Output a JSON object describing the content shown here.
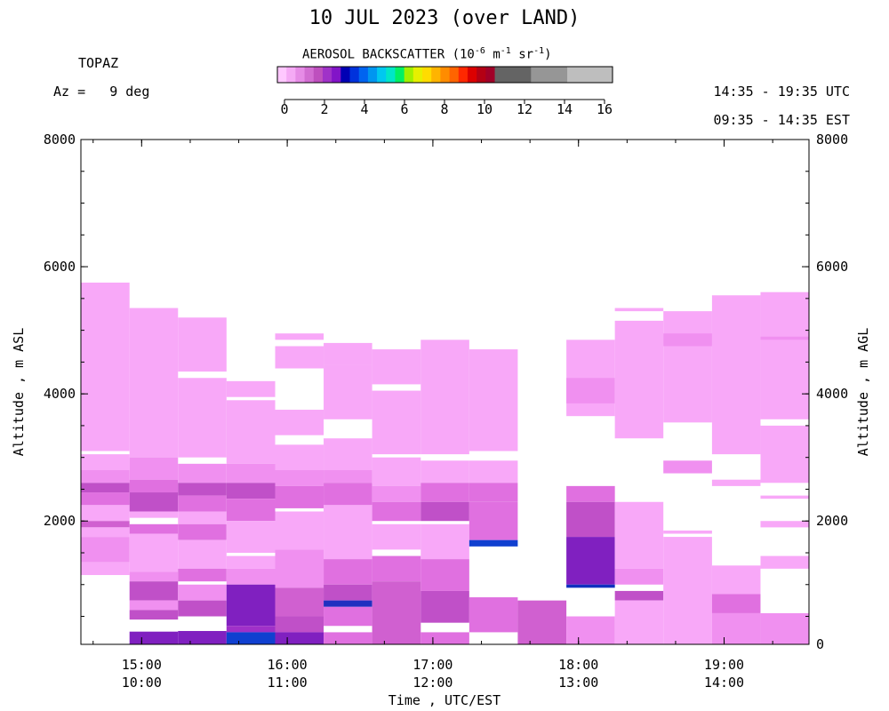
{
  "header": {
    "title": "10 JUL 2023 (over LAND)",
    "instrument": "TOPAZ",
    "azimuth_label": "Az =",
    "azimuth_value": "9 deg",
    "colorbar_title_prefix": "AEROSOL BACKSCATTER (10",
    "colorbar_title_exp1": "-6",
    "colorbar_title_mid": " m",
    "colorbar_title_exp2": "-1",
    "colorbar_title_mid2": " sr",
    "colorbar_title_exp3": "-1",
    "colorbar_title_suffix": ")",
    "utc_range": "14:35 - 19:35 UTC",
    "local_range": "09:35 - 14:35 EST"
  },
  "colorbar": {
    "ticks": [
      "0",
      "2",
      "4",
      "6",
      "8",
      "10",
      "12",
      "14",
      "16"
    ],
    "colors": [
      "#ffc8ff",
      "#f5aaf5",
      "#e68ce6",
      "#d26ed2",
      "#be50be",
      "#a032c8",
      "#8214c8",
      "#0000b4",
      "#0032dc",
      "#0064f0",
      "#0096f0",
      "#00c8f0",
      "#00e6c8",
      "#00f064",
      "#a0f000",
      "#e6f000",
      "#ffdc00",
      "#ffb400",
      "#ff8c00",
      "#ff6400",
      "#ff2800",
      "#dc0000",
      "#b40014",
      "#a00028",
      "#646464",
      "#646464",
      "#646464",
      "#646464",
      "#969696",
      "#969696",
      "#969696",
      "#969696",
      "#bebebe",
      "#bebebe",
      "#bebebe",
      "#bebebe",
      "#bebebe"
    ]
  },
  "chart_data": {
    "type": "heatmap",
    "title": "10 JUL 2023 (over LAND)",
    "xlabel": "Time , UTC/EST",
    "ylabel_left": "Altitude , m ASL",
    "ylabel_right": "Altitude , m AGL",
    "x_ticks_utc": [
      "15:00",
      "16:00",
      "17:00",
      "18:00",
      "19:00"
    ],
    "x_ticks_local": [
      "10:00",
      "11:00",
      "12:00",
      "13:00",
      "14:00"
    ],
    "x_tick_hours": [
      15,
      16,
      17,
      18,
      19
    ],
    "xlim_hours": [
      14.583,
      19.583
    ],
    "y_ticks_left": [
      "8000",
      "6000",
      "4000",
      "2000"
    ],
    "y_ticks_left_values": [
      8000,
      6000,
      4000,
      2000
    ],
    "y_ticks_right": [
      "8000",
      "6000",
      "4000",
      "2000",
      "0"
    ],
    "y_ticks_right_values": [
      8000,
      6000,
      4000,
      2000,
      60
    ],
    "ylim": [
      60,
      8000
    ],
    "colorbar_range": [
      0,
      16
    ],
    "profiles": [
      {
        "t0": 14.583,
        "t1": 14.917,
        "segments": [
          {
            "lo": 3100,
            "hi": 5750,
            "c": "#f8a8f8"
          },
          {
            "lo": 2800,
            "hi": 3050,
            "c": "#f8a8f8"
          },
          {
            "lo": 2600,
            "hi": 2800,
            "c": "#f090f0"
          },
          {
            "lo": 2450,
            "hi": 2600,
            "c": "#c050c8"
          },
          {
            "lo": 2250,
            "hi": 2450,
            "c": "#e070e0"
          },
          {
            "lo": 2000,
            "hi": 2250,
            "c": "#f8a8f8"
          },
          {
            "lo": 1900,
            "hi": 2000,
            "c": "#d060d0"
          },
          {
            "lo": 1750,
            "hi": 1900,
            "c": "#f8a8f8"
          },
          {
            "lo": 1350,
            "hi": 1750,
            "c": "#f090f0"
          },
          {
            "lo": 1150,
            "hi": 1350,
            "c": "#f8a8f8"
          }
        ]
      },
      {
        "t0": 14.917,
        "t1": 15.25,
        "segments": [
          {
            "lo": 3000,
            "hi": 5350,
            "c": "#f8a8f8"
          },
          {
            "lo": 2650,
            "hi": 3000,
            "c": "#f090f0"
          },
          {
            "lo": 2450,
            "hi": 2650,
            "c": "#e070e0"
          },
          {
            "lo": 2150,
            "hi": 2450,
            "c": "#c050c8"
          },
          {
            "lo": 2050,
            "hi": 2150,
            "c": "#f8a8f8"
          },
          {
            "lo": 1800,
            "hi": 1950,
            "c": "#e070e0"
          },
          {
            "lo": 1200,
            "hi": 1800,
            "c": "#f8a8f8"
          },
          {
            "lo": 1050,
            "hi": 1200,
            "c": "#f090f0"
          },
          {
            "lo": 750,
            "hi": 1050,
            "c": "#c050c8"
          },
          {
            "lo": 600,
            "hi": 750,
            "c": "#f090f0"
          },
          {
            "lo": 450,
            "hi": 600,
            "c": "#c050c8"
          },
          {
            "lo": 60,
            "hi": 260,
            "c": "#8020c0"
          }
        ]
      },
      {
        "t0": 15.25,
        "t1": 15.583,
        "segments": [
          {
            "lo": 4350,
            "hi": 5200,
            "c": "#f8a8f8"
          },
          {
            "lo": 3000,
            "hi": 4250,
            "c": "#f8a8f8"
          },
          {
            "lo": 2600,
            "hi": 2900,
            "c": "#f090f0"
          },
          {
            "lo": 2400,
            "hi": 2600,
            "c": "#c050c8"
          },
          {
            "lo": 2150,
            "hi": 2400,
            "c": "#e070e0"
          },
          {
            "lo": 1950,
            "hi": 2150,
            "c": "#f8a8f8"
          },
          {
            "lo": 1700,
            "hi": 1950,
            "c": "#e070e0"
          },
          {
            "lo": 1250,
            "hi": 1700,
            "c": "#f8a8f8"
          },
          {
            "lo": 1050,
            "hi": 1250,
            "c": "#e070e0"
          },
          {
            "lo": 750,
            "hi": 1000,
            "c": "#f090f0"
          },
          {
            "lo": 500,
            "hi": 750,
            "c": "#c050c8"
          },
          {
            "lo": 60,
            "hi": 270,
            "c": "#8020c0"
          }
        ]
      },
      {
        "t0": 15.583,
        "t1": 15.917,
        "segments": [
          {
            "lo": 3950,
            "hi": 4200,
            "c": "#f8a8f8"
          },
          {
            "lo": 2900,
            "hi": 3900,
            "c": "#f8a8f8"
          },
          {
            "lo": 2600,
            "hi": 2900,
            "c": "#f090f0"
          },
          {
            "lo": 2350,
            "hi": 2600,
            "c": "#c050c8"
          },
          {
            "lo": 2000,
            "hi": 2350,
            "c": "#e070e0"
          },
          {
            "lo": 1500,
            "hi": 2000,
            "c": "#f8a8f8"
          },
          {
            "lo": 1250,
            "hi": 1450,
            "c": "#f8a8f8"
          },
          {
            "lo": 1000,
            "hi": 1250,
            "c": "#f090f0"
          },
          {
            "lo": 350,
            "hi": 1000,
            "c": "#8020c0"
          },
          {
            "lo": 250,
            "hi": 350,
            "c": "#a030c8"
          },
          {
            "lo": 60,
            "hi": 250,
            "c": "#1040d0"
          }
        ]
      },
      {
        "t0": 15.917,
        "t1": 16.25,
        "segments": [
          {
            "lo": 4850,
            "hi": 4950,
            "c": "#f8a8f8"
          },
          {
            "lo": 4400,
            "hi": 4750,
            "c": "#f8a8f8"
          },
          {
            "lo": 3350,
            "hi": 3750,
            "c": "#f8a8f8"
          },
          {
            "lo": 2800,
            "hi": 3200,
            "c": "#f8a8f8"
          },
          {
            "lo": 2550,
            "hi": 2800,
            "c": "#f090f0"
          },
          {
            "lo": 2200,
            "hi": 2550,
            "c": "#e070e0"
          },
          {
            "lo": 1550,
            "hi": 2150,
            "c": "#f8a8f8"
          },
          {
            "lo": 950,
            "hi": 1550,
            "c": "#f090f0"
          },
          {
            "lo": 500,
            "hi": 950,
            "c": "#d060d0"
          },
          {
            "lo": 250,
            "hi": 500,
            "c": "#c050c8"
          },
          {
            "lo": 60,
            "hi": 250,
            "c": "#8020c0"
          }
        ]
      },
      {
        "t0": 16.25,
        "t1": 16.583,
        "segments": [
          {
            "lo": 4450,
            "hi": 4800,
            "c": "#f8a8f8"
          },
          {
            "lo": 3600,
            "hi": 4450,
            "c": "#f8a8f8"
          },
          {
            "lo": 2800,
            "hi": 3300,
            "c": "#f8a8f8"
          },
          {
            "lo": 2600,
            "hi": 2800,
            "c": "#f090f0"
          },
          {
            "lo": 2250,
            "hi": 2600,
            "c": "#e070e0"
          },
          {
            "lo": 1400,
            "hi": 2250,
            "c": "#f8a8f8"
          },
          {
            "lo": 1000,
            "hi": 1400,
            "c": "#e070e0"
          },
          {
            "lo": 750,
            "hi": 1000,
            "c": "#c050c8"
          },
          {
            "lo": 650,
            "hi": 750,
            "c": "#2030c0"
          },
          {
            "lo": 350,
            "hi": 650,
            "c": "#e070e0"
          },
          {
            "lo": 60,
            "hi": 250,
            "c": "#e070e0"
          }
        ]
      },
      {
        "t0": 16.583,
        "t1": 16.917,
        "segments": [
          {
            "lo": 4150,
            "hi": 4700,
            "c": "#f8a8f8"
          },
          {
            "lo": 3050,
            "hi": 4050,
            "c": "#f8a8f8"
          },
          {
            "lo": 2550,
            "hi": 3000,
            "c": "#f8a8f8"
          },
          {
            "lo": 2300,
            "hi": 2550,
            "c": "#f090f0"
          },
          {
            "lo": 2000,
            "hi": 2300,
            "c": "#e070e0"
          },
          {
            "lo": 1550,
            "hi": 1950,
            "c": "#f8a8f8"
          },
          {
            "lo": 1050,
            "hi": 1450,
            "c": "#e070e0"
          },
          {
            "lo": 60,
            "hi": 1050,
            "c": "#d060d0"
          }
        ]
      },
      {
        "t0": 16.917,
        "t1": 17.25,
        "segments": [
          {
            "lo": 3050,
            "hi": 4850,
            "c": "#f8a8f8"
          },
          {
            "lo": 2600,
            "hi": 2950,
            "c": "#f8a8f8"
          },
          {
            "lo": 2300,
            "hi": 2600,
            "c": "#e070e0"
          },
          {
            "lo": 2000,
            "hi": 2300,
            "c": "#c050c8"
          },
          {
            "lo": 1400,
            "hi": 1950,
            "c": "#f8a8f8"
          },
          {
            "lo": 900,
            "hi": 1400,
            "c": "#e070e0"
          },
          {
            "lo": 400,
            "hi": 900,
            "c": "#c050c8"
          },
          {
            "lo": 60,
            "hi": 250,
            "c": "#e070e0"
          }
        ]
      },
      {
        "t0": 17.25,
        "t1": 17.583,
        "segments": [
          {
            "lo": 3100,
            "hi": 4700,
            "c": "#f8a8f8"
          },
          {
            "lo": 2600,
            "hi": 2950,
            "c": "#f8a8f8"
          },
          {
            "lo": 2300,
            "hi": 2600,
            "c": "#e070e0"
          },
          {
            "lo": 1700,
            "hi": 2300,
            "c": "#e070e0"
          },
          {
            "lo": 1600,
            "hi": 1700,
            "c": "#1040d0"
          },
          {
            "lo": 250,
            "hi": 800,
            "c": "#e070e0"
          }
        ]
      },
      {
        "t0": 17.583,
        "t1": 17.917,
        "segments": [
          {
            "lo": 60,
            "hi": 750,
            "c": "#d060d0"
          }
        ]
      },
      {
        "t0": 17.917,
        "t1": 18.25,
        "segments": [
          {
            "lo": 3650,
            "hi": 4850,
            "c": "#f8a8f8"
          },
          {
            "lo": 3850,
            "hi": 4250,
            "c": "#f090f0"
          },
          {
            "lo": 2300,
            "hi": 2550,
            "c": "#e070e0"
          },
          {
            "lo": 1750,
            "hi": 2300,
            "c": "#c050c8"
          },
          {
            "lo": 1000,
            "hi": 1750,
            "c": "#8020c0"
          },
          {
            "lo": 950,
            "hi": 1000,
            "c": "#1030c0"
          },
          {
            "lo": 60,
            "hi": 500,
            "c": "#f090f0"
          }
        ]
      },
      {
        "t0": 18.25,
        "t1": 18.583,
        "segments": [
          {
            "lo": 5300,
            "hi": 5350,
            "c": "#f8a8f8"
          },
          {
            "lo": 3300,
            "hi": 5150,
            "c": "#f8a8f8"
          },
          {
            "lo": 1250,
            "hi": 2300,
            "c": "#f8a8f8"
          },
          {
            "lo": 1000,
            "hi": 1250,
            "c": "#f090f0"
          },
          {
            "lo": 750,
            "hi": 900,
            "c": "#c050c8"
          },
          {
            "lo": 60,
            "hi": 750,
            "c": "#f8a8f8"
          }
        ]
      },
      {
        "t0": 18.583,
        "t1": 18.917,
        "segments": [
          {
            "lo": 3550,
            "hi": 5300,
            "c": "#f8a8f8"
          },
          {
            "lo": 4750,
            "hi": 4950,
            "c": "#f090f0"
          },
          {
            "lo": 2750,
            "hi": 2950,
            "c": "#f090f0"
          },
          {
            "lo": 1800,
            "hi": 1850,
            "c": "#f8a8f8"
          },
          {
            "lo": 60,
            "hi": 1750,
            "c": "#f8a8f8"
          }
        ]
      },
      {
        "t0": 18.917,
        "t1": 19.25,
        "segments": [
          {
            "lo": 3050,
            "hi": 5550,
            "c": "#f8a8f8"
          },
          {
            "lo": 2550,
            "hi": 2650,
            "c": "#f8a8f8"
          },
          {
            "lo": 850,
            "hi": 1300,
            "c": "#f8a8f8"
          },
          {
            "lo": 550,
            "hi": 850,
            "c": "#e070e0"
          },
          {
            "lo": 60,
            "hi": 550,
            "c": "#f090f0"
          }
        ]
      },
      {
        "t0": 19.25,
        "t1": 19.583,
        "segments": [
          {
            "lo": 3600,
            "hi": 5600,
            "c": "#f8a8f8"
          },
          {
            "lo": 4850,
            "hi": 4900,
            "c": "#f090f0"
          },
          {
            "lo": 2600,
            "hi": 3500,
            "c": "#f8a8f8"
          },
          {
            "lo": 2350,
            "hi": 2400,
            "c": "#f8a8f8"
          },
          {
            "lo": 1900,
            "hi": 2000,
            "c": "#f8a8f8"
          },
          {
            "lo": 1250,
            "hi": 1450,
            "c": "#f8a8f8"
          },
          {
            "lo": 60,
            "hi": 550,
            "c": "#f090f0"
          }
        ]
      }
    ]
  }
}
